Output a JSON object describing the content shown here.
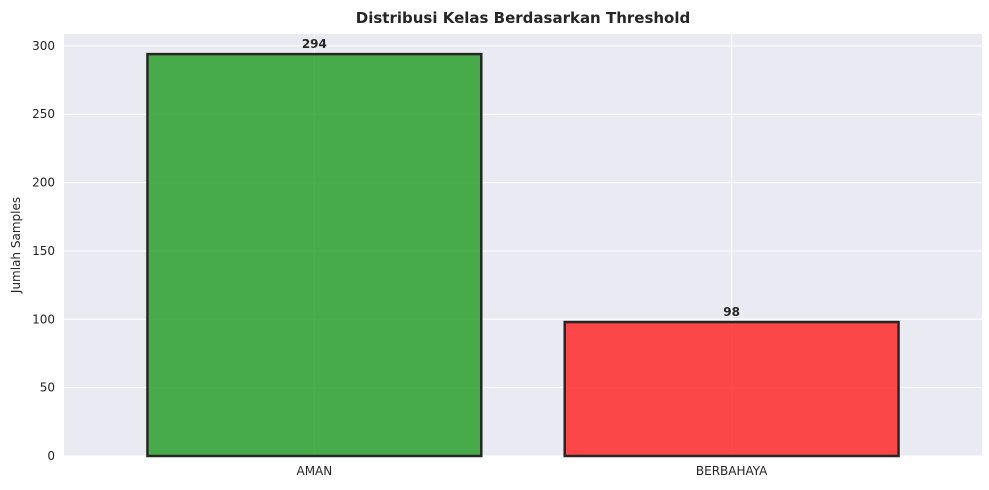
{
  "chart_data": {
    "type": "bar",
    "title": "Distribusi Kelas Berdasarkan Threshold",
    "xlabel": "",
    "ylabel": "Jumlah Samples",
    "categories": [
      "AMAN",
      "BERBAHAYA"
    ],
    "values": [
      294,
      98
    ],
    "data_labels": [
      "294",
      "98"
    ],
    "colors": [
      "#2ca02c",
      "#ff2a2a"
    ],
    "edge_color": "#262626",
    "ylim": [
      0,
      308.7
    ],
    "yticks": [
      0,
      50,
      100,
      150,
      200,
      250,
      300
    ],
    "ytick_labels": [
      "0",
      "50",
      "100",
      "150",
      "200",
      "250",
      "300"
    ],
    "grid": true,
    "legend": "none",
    "plot_background": "#eaeaf2"
  }
}
